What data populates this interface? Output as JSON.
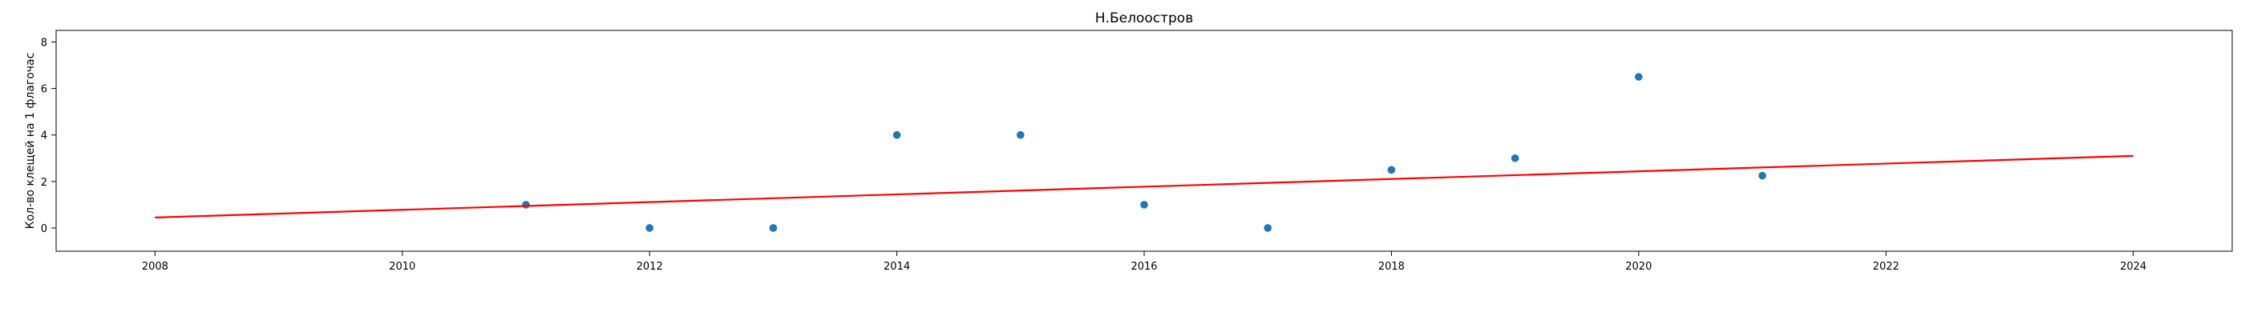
{
  "chart_data": {
    "type": "scatter",
    "title": "Н.Белоостров",
    "xlabel": "",
    "ylabel": "Кол-во клещей на 1 флагочас",
    "xlim": [
      2007.2,
      2024.8
    ],
    "ylim": [
      -1,
      8.5
    ],
    "x_ticks": [
      2008,
      2010,
      2012,
      2014,
      2016,
      2018,
      2020,
      2022,
      2024
    ],
    "x_tick_labels": [
      "2008",
      "2010",
      "2012",
      "2014",
      "2016",
      "2018",
      "2020",
      "2022",
      "2024"
    ],
    "y_ticks": [
      0,
      2,
      4,
      6,
      8
    ],
    "y_tick_labels": [
      "0",
      "2",
      "4",
      "6",
      "8"
    ],
    "grid": false,
    "series": [
      {
        "name": "observations",
        "kind": "scatter",
        "color": "#1f77b4",
        "x": [
          2011,
          2012,
          2013,
          2014,
          2015,
          2016,
          2017,
          2018,
          2019,
          2020,
          2021
        ],
        "y": [
          1,
          0,
          0,
          4,
          4,
          1,
          0,
          2.5,
          3,
          6.5,
          2.25
        ]
      },
      {
        "name": "trend",
        "kind": "line",
        "color": "#ff0000",
        "x": [
          2008,
          2024
        ],
        "y": [
          0.45,
          3.1
        ]
      }
    ]
  }
}
